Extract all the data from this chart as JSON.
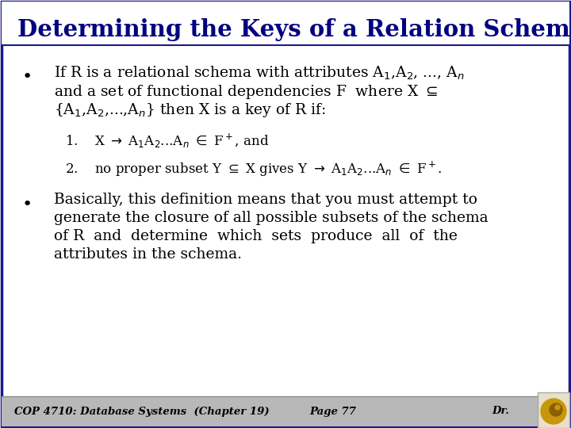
{
  "title": "Determining the Keys of a Relation Schema",
  "title_color": "#000080",
  "border_color": "#1a1a8c",
  "bg_color": "#ffffff",
  "footer_text1": "COP 4710: Database Systems  (Chapter 19)",
  "footer_text2": "Page 77",
  "footer_text3": "Dr.",
  "text_color": "#000000",
  "font_family": "DejaVu Serif",
  "line1": "If R is a relational schema with attributes A$_1$,A$_2$, ..., A$_n$",
  "line2": "and a set of functional dependencies F  where X $\\subseteq$",
  "line3": "{A$_1$,A$_2$,...,A$_n$} then X is a key of R if:",
  "num1": "1.    X $\\rightarrow$ A$_1$A$_2$...A$_n$ $\\in$ F$^+$, and",
  "num2": "2.    no proper subset Y $\\subseteq$ X gives Y $\\rightarrow$ A$_1$A$_2$...A$_n$ $\\in$ F$^+$.",
  "b2_l1": "Basically, this definition means that you must attempt to",
  "b2_l2": "generate the closure of all possible subsets of the schema",
  "b2_l3": "of R  and  determine  which  sets  produce  all  of  the",
  "b2_l4": "attributes in the schema.",
  "footer_bg": "#b8b8b8",
  "gold_color": "#c8960c"
}
